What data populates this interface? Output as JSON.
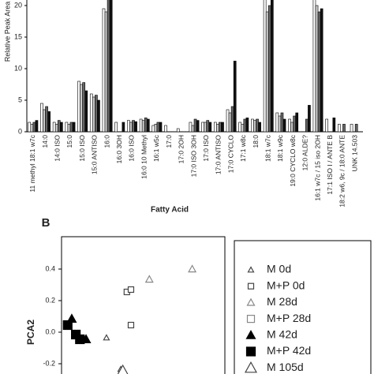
{
  "chart_data": [
    {
      "type": "bar",
      "y_label": "Relative Peak Area",
      "x_label": "Fatty Acid",
      "categories": [
        "11 methyl 18:1 w7c",
        "14:0",
        "14:0 ISO",
        "15:0",
        "15:0 ISO",
        "15:0 ANTISO",
        "16:0",
        "16:0 3OH",
        "16:0 ISO",
        "16:0 10 Methyl",
        "16:1 w5c",
        "17:0",
        "17:0 2OH",
        "17:0 ISO 3OH",
        "17:0 ISO",
        "17:0 ANTISO",
        "17:0 CYCLO",
        "17:1 w8c",
        "18:0",
        "18:1 w7c",
        "18:1 w9c",
        "19:0 CYCLO w8c",
        "12:0 ALDE?",
        "16:1 w7c / 15 iso 2OH",
        "17:1 ISO I / ANTE B",
        "18:2 w6, 9c / 18:0 ANTE",
        "UNK 14.503"
      ],
      "series": [
        {
          "color": "#ffffff",
          "values": [
            1.5,
            4.5,
            1.5,
            1.5,
            8,
            6,
            19.5,
            1.5,
            1.8,
            2,
            1,
            1,
            0.5,
            1.5,
            1.5,
            1.5,
            3.5,
            1.5,
            2,
            21,
            3,
            2,
            0,
            21,
            2,
            1.2,
            1.2
          ]
        },
        {
          "color": "#cccccc",
          "values": [
            1.2,
            3.5,
            1.2,
            1.2,
            7.5,
            5.5,
            19,
            0,
            1.5,
            1.8,
            1.2,
            0,
            0,
            1,
            1.5,
            1.2,
            3,
            1.2,
            1.8,
            19,
            2.5,
            1.5,
            0,
            20,
            0,
            0,
            0
          ]
        },
        {
          "color": "#666666",
          "values": [
            1.5,
            4,
            1.8,
            1.5,
            7.8,
            5.8,
            21,
            0,
            1.8,
            2.2,
            1.5,
            0,
            0,
            2,
            1.8,
            1.5,
            4,
            2,
            2,
            20,
            3,
            2.5,
            2,
            19,
            0,
            1.2,
            1.2
          ]
        },
        {
          "color": "#111111",
          "values": [
            1.8,
            3.2,
            1.5,
            1.5,
            6.5,
            5,
            21,
            1.5,
            1.6,
            2,
            1.5,
            0,
            0,
            1.8,
            1.5,
            1.5,
            11.2,
            2.2,
            1.5,
            21,
            2,
            3,
            4.2,
            19.5,
            2.2,
            0,
            0
          ]
        }
      ],
      "ylim": [
        0,
        21
      ],
      "yticks": [
        0,
        5,
        10,
        15,
        20
      ]
    },
    {
      "type": "scatter",
      "title": "B",
      "y_label": "PCA2",
      "xlim": [
        -0.4,
        0.4
      ],
      "ylim": [
        -0.265,
        0.605
      ],
      "yticks": [
        0.4,
        0.2,
        {
          "value": 0,
          "label": "0.0"
        },
        -0.2
      ],
      "series": [
        {
          "name": "M 0d",
          "marker": "triangle",
          "filled": false,
          "color": "#444444",
          "size": 7,
          "x": [
            -0.18,
            -0.11
          ],
          "values": [
            -0.035,
            -0.235
          ]
        },
        {
          "name": "M+P 0d",
          "marker": "square",
          "filled": false,
          "color": "#444444",
          "size": 7,
          "x": [
            -0.08,
            -0.06,
            -0.06
          ],
          "values": [
            0.255,
            0.27,
            0.045
          ]
        },
        {
          "name": "M 28d",
          "marker": "triangle",
          "filled": false,
          "color": "#888888",
          "size": 9,
          "x": [
            0.03,
            0.24
          ],
          "values": [
            0.335,
            0.4
          ]
        },
        {
          "name": "M+P 28d",
          "marker": "square",
          "filled": false,
          "color": "#888888",
          "size": 9,
          "x": [],
          "values": []
        },
        {
          "name": "M 42d",
          "marker": "triangle",
          "filled": true,
          "color": "#000000",
          "size": 11,
          "x": [
            -0.35,
            -0.28
          ],
          "values": [
            0.085,
            -0.045
          ]
        },
        {
          "name": "M+P 42d",
          "marker": "square",
          "filled": true,
          "color": "#000000",
          "size": 11,
          "x": [
            -0.37,
            -0.33,
            -0.31
          ],
          "values": [
            0.045,
            -0.015,
            -0.045
          ]
        },
        {
          "name": "M 105d",
          "marker": "triangle",
          "filled": false,
          "color": "#444444",
          "size": 14,
          "x": [
            -0.1
          ],
          "values": [
            -0.245
          ]
        }
      ]
    }
  ]
}
